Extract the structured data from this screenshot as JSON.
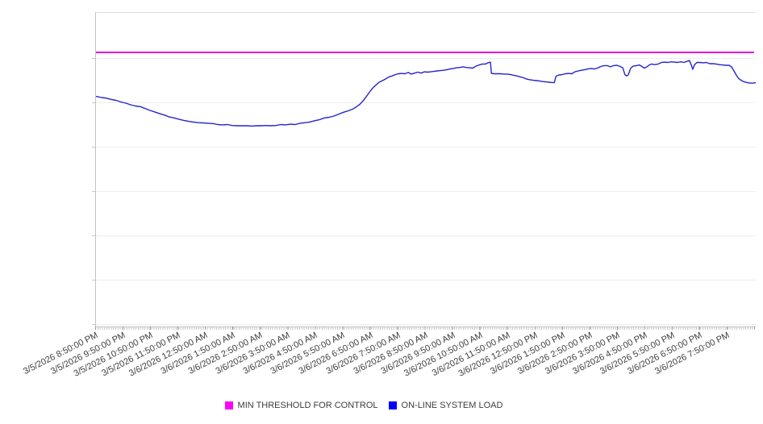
{
  "legend": {
    "items": [
      {
        "label": "MIN THRESHOLD FOR CONTROL",
        "color": "#ff00ff"
      },
      {
        "label": "ON-LINE SYSTEM LOAD",
        "color": "#0000ff"
      }
    ]
  },
  "chart_data": {
    "type": "line",
    "title": "",
    "xlabel": "",
    "ylabel": "",
    "grid": "horizontal-only",
    "legend_position": "bottom-center",
    "y_axis_note": "no visible y-axis tick labels; values below are normalized 0-100 of plot height",
    "x_units": "hours after 3/5/2026 8:50:00 PM; minor ticks every 5 minutes",
    "x_range_hours": [
      0,
      24.05
    ],
    "x_axis": {
      "tick_labels": [
        "3/5/2026 8:50:00 PM",
        "3/5/2026 9:50:00 PM",
        "3/5/2026 10:50:00 PM",
        "3/5/2026 11:50:00 PM",
        "3/6/2026 12:50:00 AM",
        "3/6/2026 1:50:00 AM",
        "3/6/2026 2:50:00 AM",
        "3/6/2026 3:50:00 AM",
        "3/6/2026 4:50:00 AM",
        "3/6/2026 5:50:00 AM",
        "3/6/2026 6:50:00 AM",
        "3/6/2026 7:50:00 AM",
        "3/6/2026 8:50:00 AM",
        "3/6/2026 9:50:00 AM",
        "3/6/2026 10:50:00 AM",
        "3/6/2026 11:50:00 AM",
        "3/6/2026 12:50:00 PM",
        "3/6/2026 1:50:00 PM",
        "3/6/2026 2:50:00 PM",
        "3/6/2026 3:50:00 PM",
        "3/6/2026 4:50:00 PM",
        "3/6/2026 5:50:00 PM",
        "3/6/2026 6:50:00 PM",
        "3/6/2026 7:50:00 PM"
      ]
    },
    "series": [
      {
        "name": "MIN THRESHOLD FOR CONTROL",
        "style": "horizontal-threshold",
        "color": "#e209e2",
        "value": 87.5
      },
      {
        "name": "ON-LINE SYSTEM LOAD",
        "style": "line",
        "color": "#2424cd",
        "points": [
          [
            0,
            73.4
          ],
          [
            0.21,
            73
          ],
          [
            0.38,
            72.8
          ],
          [
            0.56,
            72.4
          ],
          [
            0.73,
            72.1
          ],
          [
            0.91,
            71.6
          ],
          [
            1.09,
            71.2
          ],
          [
            1.26,
            70.7
          ],
          [
            1.44,
            70.3
          ],
          [
            1.62,
            70.1
          ],
          [
            1.79,
            69.5
          ],
          [
            1.97,
            68.9
          ],
          [
            2.14,
            68.4
          ],
          [
            2.32,
            67.9
          ],
          [
            2.5,
            67.4
          ],
          [
            2.67,
            66.8
          ],
          [
            2.85,
            66.5
          ],
          [
            3.02,
            66.1
          ],
          [
            3.2,
            65.7
          ],
          [
            3.38,
            65.4
          ],
          [
            3.55,
            65.2
          ],
          [
            3.73,
            65
          ],
          [
            3.91,
            64.9
          ],
          [
            4.08,
            64.8
          ],
          [
            4.26,
            64.7
          ],
          [
            4.43,
            64.4
          ],
          [
            4.61,
            64.3
          ],
          [
            4.79,
            64.4
          ],
          [
            4.96,
            64.1
          ],
          [
            5.14,
            64
          ],
          [
            5.32,
            64
          ],
          [
            5.49,
            64
          ],
          [
            5.67,
            63.9
          ],
          [
            5.84,
            64
          ],
          [
            6.02,
            64
          ],
          [
            6.2,
            64.1
          ],
          [
            6.37,
            64
          ],
          [
            6.55,
            64.1
          ],
          [
            6.73,
            64.4
          ],
          [
            6.9,
            64.3
          ],
          [
            7.08,
            64.5
          ],
          [
            7.25,
            64.4
          ],
          [
            7.43,
            64.8
          ],
          [
            7.61,
            65
          ],
          [
            7.78,
            65.2
          ],
          [
            7.96,
            65.6
          ],
          [
            8.13,
            65.9
          ],
          [
            8.31,
            66.5
          ],
          [
            8.49,
            66.7
          ],
          [
            8.66,
            67.1
          ],
          [
            8.84,
            67.7
          ],
          [
            9.01,
            68.3
          ],
          [
            9.13,
            68.6
          ],
          [
            9.25,
            69
          ],
          [
            9.37,
            69.4
          ],
          [
            9.49,
            70.1
          ],
          [
            9.6,
            70.8
          ],
          [
            9.72,
            71.9
          ],
          [
            9.84,
            73.3
          ],
          [
            9.96,
            74.7
          ],
          [
            10.07,
            76
          ],
          [
            10.19,
            77
          ],
          [
            10.31,
            77.9
          ],
          [
            10.43,
            78.4
          ],
          [
            10.54,
            78.9
          ],
          [
            10.66,
            79.6
          ],
          [
            10.78,
            79.9
          ],
          [
            10.9,
            80.3
          ],
          [
            11.01,
            80.6
          ],
          [
            11.13,
            80.7
          ],
          [
            11.25,
            80.6
          ],
          [
            11.37,
            81
          ],
          [
            11.48,
            80.5
          ],
          [
            11.6,
            80.8
          ],
          [
            11.72,
            81.1
          ],
          [
            11.84,
            80.8
          ],
          [
            11.95,
            81.2
          ],
          [
            12.07,
            81.1
          ],
          [
            12.19,
            81.2
          ],
          [
            12.31,
            81.4
          ],
          [
            12.42,
            81.5
          ],
          [
            12.54,
            81.6
          ],
          [
            12.66,
            81.7
          ],
          [
            12.78,
            81.9
          ],
          [
            12.89,
            82.1
          ],
          [
            13.01,
            82.3
          ],
          [
            13.13,
            82.5
          ],
          [
            13.25,
            82.6
          ],
          [
            13.36,
            82.8
          ],
          [
            13.48,
            82.6
          ],
          [
            13.6,
            82.5
          ],
          [
            13.72,
            82.4
          ],
          [
            13.83,
            83
          ],
          [
            13.95,
            83.4
          ],
          [
            14.07,
            83.7
          ],
          [
            14.19,
            83.7
          ],
          [
            14.27,
            84.1
          ],
          [
            14.36,
            84.3
          ],
          [
            14.4,
            80.7
          ],
          [
            14.51,
            80.6
          ],
          [
            14.63,
            80.6
          ],
          [
            14.74,
            80.6
          ],
          [
            14.86,
            80.5
          ],
          [
            14.98,
            80.5
          ],
          [
            15.1,
            80.3
          ],
          [
            15.21,
            80.1
          ],
          [
            15.33,
            79.9
          ],
          [
            15.45,
            79.6
          ],
          [
            15.57,
            79.3
          ],
          [
            15.68,
            78.9
          ],
          [
            15.8,
            78.7
          ],
          [
            15.92,
            78.5
          ],
          [
            16.04,
            78.4
          ],
          [
            16.15,
            78.3
          ],
          [
            16.27,
            78.1
          ],
          [
            16.39,
            78
          ],
          [
            16.5,
            77.9
          ],
          [
            16.62,
            77.8
          ],
          [
            16.69,
            77.8
          ],
          [
            16.75,
            79.8
          ],
          [
            16.86,
            80.2
          ],
          [
            16.97,
            80.3
          ],
          [
            17.09,
            80.6
          ],
          [
            17.21,
            80.7
          ],
          [
            17.33,
            80.6
          ],
          [
            17.44,
            81.2
          ],
          [
            17.56,
            81.5
          ],
          [
            17.68,
            81.7
          ],
          [
            17.8,
            81.9
          ],
          [
            17.91,
            82.1
          ],
          [
            18.03,
            82.3
          ],
          [
            18.15,
            82.1
          ],
          [
            18.26,
            82.4
          ],
          [
            18.38,
            82.9
          ],
          [
            18.5,
            83.2
          ],
          [
            18.62,
            83.2
          ],
          [
            18.73,
            82.8
          ],
          [
            18.85,
            83.2
          ],
          [
            18.97,
            83.3
          ],
          [
            19.09,
            82.9
          ],
          [
            19.18,
            82.5
          ],
          [
            19.26,
            80.3
          ],
          [
            19.32,
            79.9
          ],
          [
            19.38,
            80.2
          ],
          [
            19.47,
            82.4
          ],
          [
            19.56,
            83
          ],
          [
            19.68,
            83.2
          ],
          [
            19.79,
            83.4
          ],
          [
            19.88,
            82.9
          ],
          [
            19.97,
            82.4
          ],
          [
            20.06,
            82.8
          ],
          [
            20.15,
            83.4
          ],
          [
            20.23,
            83.7
          ],
          [
            20.35,
            83.5
          ],
          [
            20.47,
            83.7
          ],
          [
            20.59,
            84.2
          ],
          [
            20.7,
            84.3
          ],
          [
            20.82,
            84.2
          ],
          [
            20.94,
            84.4
          ],
          [
            21.06,
            84.3
          ],
          [
            21.17,
            84.2
          ],
          [
            21.29,
            84.4
          ],
          [
            21.41,
            84.2
          ],
          [
            21.53,
            84.6
          ],
          [
            21.61,
            84.8
          ],
          [
            21.67,
            83.5
          ],
          [
            21.73,
            82
          ],
          [
            21.79,
            83.4
          ],
          [
            21.88,
            84.2
          ],
          [
            22,
            84.2
          ],
          [
            22.11,
            84.1
          ],
          [
            22.23,
            84.2
          ],
          [
            22.35,
            83.8
          ],
          [
            22.47,
            83.8
          ],
          [
            22.58,
            83.7
          ],
          [
            22.7,
            83.5
          ],
          [
            22.82,
            83.4
          ],
          [
            22.94,
            83.3
          ],
          [
            23.05,
            83.3
          ],
          [
            23.14,
            82.8
          ],
          [
            23.23,
            81.5
          ],
          [
            23.32,
            80.1
          ],
          [
            23.41,
            79
          ],
          [
            23.49,
            78.5
          ],
          [
            23.58,
            78.1
          ],
          [
            23.7,
            77.8
          ],
          [
            23.82,
            77.6
          ],
          [
            23.94,
            77.6
          ],
          [
            24.05,
            77.8
          ]
        ]
      }
    ]
  }
}
